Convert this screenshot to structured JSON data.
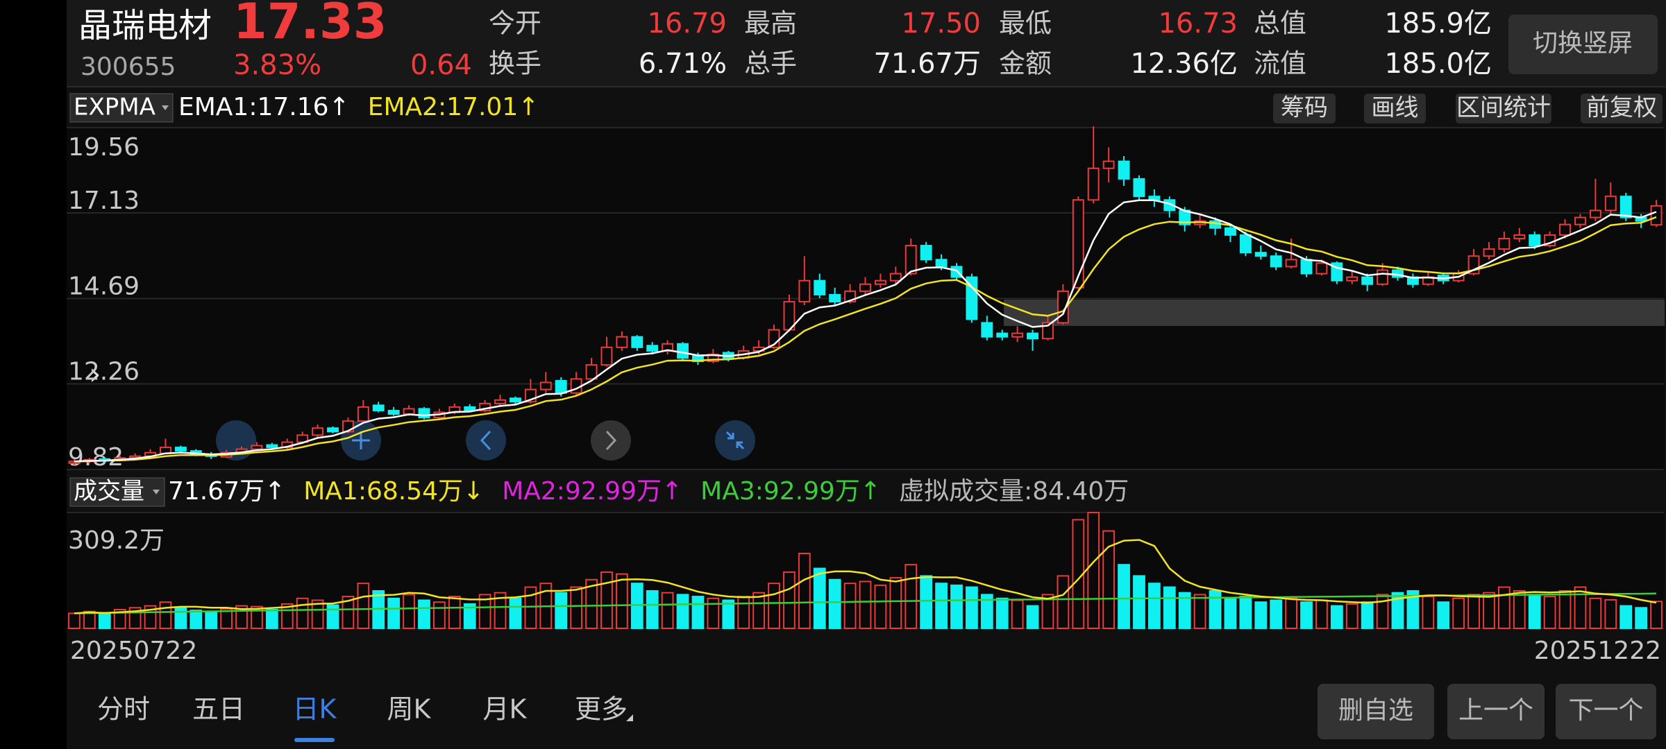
{
  "header": {
    "name": "晶瑞电材",
    "price": "17.33",
    "code": "300655",
    "change_pct": "3.83%",
    "change": "0.64",
    "fields": [
      {
        "label": "今开",
        "value": "16.79"
      },
      {
        "label": "最高",
        "value": "17.50"
      },
      {
        "label": "最低",
        "value": "16.73"
      },
      {
        "label": "总值",
        "value": "185.9亿"
      },
      {
        "label": "换手",
        "value": "6.71%"
      },
      {
        "label": "总手",
        "value": "71.67万"
      },
      {
        "label": "金额",
        "value": "12.36亿"
      },
      {
        "label": "流值",
        "value": "185.0亿"
      }
    ],
    "button": "切换竖屏"
  },
  "toolbar": {
    "indicator": "EXPMA",
    "legend": [
      {
        "text": "EMA1:17.16↑",
        "color": "#ffffff"
      },
      {
        "text": "EMA2:17.01↑",
        "color": "#f2e422"
      }
    ],
    "buttons": [
      "筹码",
      "画线",
      "区间统计",
      "前复权"
    ]
  },
  "volume_bar": {
    "indicator": "成交量",
    "legend": [
      {
        "text": "71.67万↑",
        "color": "#ffffff"
      },
      {
        "text": "MA1:68.54万↓",
        "color": "#f2e422"
      },
      {
        "text": "MA2:92.99万↑",
        "color": "#e024e0"
      },
      {
        "text": "MA3:92.99万↑",
        "color": "#3ccc3c"
      },
      {
        "text": "虚拟成交量:84.40万",
        "color": "#b8b8b8"
      }
    ]
  },
  "chart_data": {
    "type": "candlestick",
    "up_color": "#ec3a3a",
    "down_color": "#10f0f0",
    "ema1_color": "#ffffff",
    "ema2_color": "#f2e422",
    "grid": true,
    "ylim": [
      9.82,
      19.56
    ],
    "yticks": [
      9.82,
      12.26,
      14.69,
      17.13,
      19.56
    ],
    "date_labels": {
      "first": "20250722",
      "last": "20251222"
    },
    "candles": [
      [
        10.0,
        10.12,
        9.95,
        10.05
      ],
      [
        10.05,
        10.15,
        10.0,
        10.1
      ],
      [
        10.12,
        10.18,
        10.02,
        10.08
      ],
      [
        10.08,
        10.22,
        10.05,
        10.15
      ],
      [
        10.15,
        10.28,
        10.1,
        10.2
      ],
      [
        10.2,
        10.4,
        10.15,
        10.3
      ],
      [
        10.28,
        10.7,
        10.25,
        10.45
      ],
      [
        10.45,
        10.5,
        10.3,
        10.35
      ],
      [
        10.35,
        10.4,
        10.2,
        10.25
      ],
      [
        10.25,
        10.32,
        10.12,
        10.2
      ],
      [
        10.18,
        10.38,
        10.15,
        10.3
      ],
      [
        10.3,
        10.48,
        10.25,
        10.4
      ],
      [
        10.4,
        10.6,
        10.35,
        10.5
      ],
      [
        10.52,
        10.58,
        10.38,
        10.45
      ],
      [
        10.45,
        10.7,
        10.4,
        10.6
      ],
      [
        10.6,
        10.9,
        10.55,
        10.8
      ],
      [
        10.8,
        11.1,
        10.75,
        11.0
      ],
      [
        11.0,
        11.05,
        10.85,
        10.9
      ],
      [
        10.9,
        11.3,
        10.85,
        11.2
      ],
      [
        11.2,
        11.8,
        11.15,
        11.6
      ],
      [
        11.65,
        11.75,
        11.45,
        11.5
      ],
      [
        11.5,
        11.6,
        11.35,
        11.4
      ],
      [
        11.4,
        11.65,
        11.35,
        11.55
      ],
      [
        11.55,
        11.6,
        11.25,
        11.3
      ],
      [
        11.3,
        11.55,
        11.25,
        11.45
      ],
      [
        11.45,
        11.7,
        11.4,
        11.6
      ],
      [
        11.6,
        11.68,
        11.45,
        11.5
      ],
      [
        11.5,
        11.8,
        11.45,
        11.7
      ],
      [
        11.7,
        11.95,
        11.65,
        11.8
      ],
      [
        11.85,
        11.9,
        11.65,
        11.75
      ],
      [
        11.75,
        12.4,
        11.7,
        12.1
      ],
      [
        12.1,
        12.6,
        12.0,
        12.3
      ],
      [
        12.35,
        12.45,
        11.9,
        12.0
      ],
      [
        12.0,
        12.6,
        11.95,
        12.4
      ],
      [
        12.4,
        13.0,
        12.35,
        12.8
      ],
      [
        12.8,
        13.6,
        12.75,
        13.3
      ],
      [
        13.3,
        13.75,
        13.2,
        13.6
      ],
      [
        13.6,
        13.65,
        13.2,
        13.3
      ],
      [
        13.35,
        13.45,
        13.1,
        13.2
      ],
      [
        13.2,
        13.5,
        13.1,
        13.4
      ],
      [
        13.4,
        13.45,
        12.95,
        13.0
      ],
      [
        13.05,
        13.15,
        12.8,
        12.9
      ],
      [
        12.9,
        13.25,
        12.85,
        13.1
      ],
      [
        13.15,
        13.2,
        12.9,
        13.0
      ],
      [
        13.0,
        13.35,
        12.95,
        13.2
      ],
      [
        13.2,
        13.5,
        13.1,
        13.3
      ],
      [
        13.3,
        13.95,
        13.25,
        13.8
      ],
      [
        13.8,
        14.8,
        13.75,
        14.6
      ],
      [
        14.6,
        15.9,
        14.5,
        15.2
      ],
      [
        15.2,
        15.4,
        14.7,
        14.8
      ],
      [
        14.8,
        15.0,
        14.5,
        14.6
      ],
      [
        14.6,
        15.1,
        14.55,
        14.9
      ],
      [
        14.9,
        15.3,
        14.8,
        15.1
      ],
      [
        15.1,
        15.4,
        15.0,
        15.2
      ],
      [
        15.2,
        15.6,
        15.1,
        15.4
      ],
      [
        15.4,
        16.4,
        15.35,
        16.2
      ],
      [
        16.2,
        16.3,
        15.7,
        15.8
      ],
      [
        15.8,
        15.95,
        15.5,
        15.6
      ],
      [
        15.6,
        15.7,
        15.2,
        15.3
      ],
      [
        15.3,
        15.4,
        14.0,
        14.1
      ],
      [
        14.0,
        14.2,
        13.5,
        13.6
      ],
      [
        13.7,
        13.8,
        13.5,
        13.6
      ],
      [
        13.6,
        13.9,
        13.45,
        13.7
      ],
      [
        13.7,
        13.8,
        13.2,
        13.55
      ],
      [
        13.55,
        14.2,
        13.5,
        14.0
      ],
      [
        14.0,
        15.1,
        13.95,
        14.9
      ],
      [
        15.0,
        17.6,
        14.95,
        17.5
      ],
      [
        17.5,
        19.6,
        17.4,
        18.4
      ],
      [
        18.4,
        19.0,
        18.0,
        18.6
      ],
      [
        18.6,
        18.75,
        17.9,
        18.1
      ],
      [
        18.1,
        18.2,
        17.5,
        17.6
      ],
      [
        17.6,
        17.8,
        17.3,
        17.5
      ],
      [
        17.5,
        17.6,
        17.0,
        17.2
      ],
      [
        17.2,
        17.3,
        16.6,
        16.8
      ],
      [
        16.8,
        17.1,
        16.7,
        16.9
      ],
      [
        16.9,
        17.0,
        16.5,
        16.7
      ],
      [
        16.7,
        16.8,
        16.3,
        16.5
      ],
      [
        16.5,
        16.6,
        15.9,
        16.0
      ],
      [
        16.0,
        16.2,
        15.8,
        15.9
      ],
      [
        15.9,
        16.0,
        15.5,
        15.6
      ],
      [
        15.6,
        16.4,
        15.55,
        15.8
      ],
      [
        15.8,
        15.9,
        15.3,
        15.4
      ],
      [
        15.4,
        15.8,
        15.35,
        15.7
      ],
      [
        15.7,
        15.75,
        15.1,
        15.2
      ],
      [
        15.2,
        15.5,
        15.1,
        15.3
      ],
      [
        15.3,
        15.4,
        14.9,
        15.1
      ],
      [
        15.1,
        15.7,
        15.05,
        15.5
      ],
      [
        15.5,
        15.6,
        15.2,
        15.3
      ],
      [
        15.3,
        15.4,
        15.0,
        15.1
      ],
      [
        15.1,
        15.45,
        15.05,
        15.3
      ],
      [
        15.35,
        15.4,
        15.1,
        15.2
      ],
      [
        15.2,
        15.5,
        15.15,
        15.4
      ],
      [
        15.4,
        16.1,
        15.35,
        15.9
      ],
      [
        15.9,
        16.3,
        15.8,
        16.1
      ],
      [
        16.1,
        16.6,
        16.0,
        16.4
      ],
      [
        16.4,
        16.7,
        16.3,
        16.5
      ],
      [
        16.5,
        16.6,
        16.1,
        16.2
      ],
      [
        16.2,
        16.6,
        16.15,
        16.5
      ],
      [
        16.5,
        16.95,
        16.4,
        16.8
      ],
      [
        16.8,
        17.1,
        16.7,
        17.0
      ],
      [
        17.0,
        18.1,
        16.9,
        17.2
      ],
      [
        17.2,
        18.0,
        17.1,
        17.6
      ],
      [
        17.6,
        17.7,
        16.9,
        17.0
      ],
      [
        17.0,
        17.1,
        16.7,
        16.9
      ],
      [
        16.79,
        17.5,
        16.73,
        17.33
      ]
    ],
    "ema1": [
      10.05,
      10.07,
      10.07,
      10.1,
      10.13,
      10.19,
      10.28,
      10.3,
      10.28,
      10.25,
      10.27,
      10.31,
      10.37,
      10.4,
      10.47,
      10.58,
      10.72,
      10.78,
      10.92,
      11.15,
      11.27,
      11.31,
      11.39,
      11.36,
      11.39,
      11.46,
      11.47,
      11.55,
      11.63,
      11.67,
      11.81,
      11.97,
      11.98,
      12.12,
      12.35,
      12.67,
      12.98,
      13.09,
      13.13,
      13.22,
      13.15,
      13.07,
      13.08,
      13.05,
      13.1,
      13.17,
      13.38,
      13.79,
      14.26,
      14.44,
      14.49,
      14.63,
      14.79,
      14.93,
      15.09,
      15.46,
      15.57,
      15.58,
      15.49,
      15.02,
      14.55,
      14.23,
      14.05,
      13.88,
      13.92,
      14.25,
      15.33,
      16.35,
      17.1,
      17.43,
      17.49,
      17.49,
      17.39,
      17.19,
      17.09,
      16.96,
      16.81,
      16.54,
      16.33,
      16.09,
      15.99,
      15.79,
      15.76,
      15.57,
      15.48,
      15.35,
      15.4,
      15.37,
      15.28,
      15.29,
      15.26,
      15.31,
      15.51,
      15.71,
      15.94,
      16.13,
      16.15,
      16.27,
      16.45,
      16.63,
      16.82,
      17.08,
      17.05,
      17.0,
      17.16
    ],
    "ema2": [
      10.05,
      10.06,
      10.07,
      10.08,
      10.1,
      10.14,
      10.2,
      10.23,
      10.23,
      10.23,
      10.24,
      10.27,
      10.31,
      10.34,
      10.38,
      10.46,
      10.56,
      10.62,
      10.72,
      10.9,
      11.02,
      11.09,
      11.17,
      11.21,
      11.25,
      11.31,
      11.34,
      11.4,
      11.47,
      11.52,
      11.63,
      11.77,
      11.81,
      11.92,
      12.1,
      12.33,
      12.59,
      12.72,
      12.81,
      12.92,
      12.93,
      12.92,
      12.95,
      12.96,
      13.0,
      13.06,
      13.19,
      13.45,
      13.77,
      13.96,
      14.1,
      14.25,
      14.4,
      14.54,
      14.7,
      14.97,
      15.12,
      15.2,
      15.22,
      15.02,
      14.77,
      14.56,
      14.4,
      14.24,
      14.2,
      14.33,
      14.9,
      15.53,
      16.09,
      16.45,
      16.66,
      16.81,
      16.88,
      16.86,
      16.87,
      16.84,
      16.78,
      16.64,
      16.51,
      16.35,
      16.25,
      16.1,
      16.03,
      15.88,
      15.78,
      15.64,
      15.61,
      15.56,
      15.48,
      15.45,
      15.41,
      15.41,
      15.5,
      15.61,
      15.75,
      15.88,
      15.94,
      16.04,
      16.18,
      16.33,
      16.55,
      16.78,
      16.83,
      16.85,
      17.01
    ],
    "volume": {
      "ylim": [
        0,
        309.2
      ],
      "yticks": [
        {
          "value": 309.2,
          "label": "309.2万"
        }
      ],
      "ma1_color": "#f2e422",
      "ma2_color": "#3ccc3c",
      "values": [
        40,
        45,
        38,
        50,
        55,
        60,
        70,
        55,
        48,
        42,
        52,
        60,
        58,
        50,
        65,
        80,
        75,
        62,
        85,
        120,
        100,
        80,
        90,
        75,
        70,
        85,
        65,
        90,
        95,
        80,
        110,
        120,
        95,
        110,
        130,
        150,
        145,
        120,
        100,
        95,
        90,
        85,
        80,
        75,
        85,
        95,
        120,
        150,
        200,
        160,
        130,
        120,
        125,
        115,
        135,
        170,
        140,
        120,
        115,
        110,
        90,
        80,
        75,
        60,
        90,
        140,
        290,
        309,
        260,
        170,
        140,
        120,
        110,
        95,
        90,
        100,
        80,
        85,
        70,
        75,
        80,
        70,
        75,
        60,
        65,
        70,
        90,
        95,
        100,
        85,
        70,
        80,
        90,
        95,
        110,
        100,
        90,
        85,
        100,
        110,
        80,
        76,
        60,
        55,
        71.67
      ],
      "ma1": [
        40,
        42.5,
        41,
        43,
        45.6,
        49.6,
        54.6,
        57.6,
        57.6,
        55,
        55,
        51.4,
        52,
        54.4,
        57,
        62.6,
        65.6,
        66.4,
        73.4,
        84.4,
        88.4,
        89.4,
        95,
        93,
        83,
        80,
        77,
        77,
        81,
        83,
        88,
        100,
        100,
        103,
        113,
        121,
        130,
        131,
        129,
        122,
        110,
        98,
        90,
        85,
        83,
        84,
        91,
        105,
        130,
        146,
        152,
        152,
        147,
        130,
        125,
        133,
        137,
        136,
        136,
        127,
        115,
        103,
        94,
        83,
        79,
        89,
        131,
        177,
        218,
        234,
        236,
        220,
        160,
        127,
        111,
        103,
        95,
        90,
        85,
        82,
        78,
        76,
        75,
        72,
        70,
        68,
        72,
        79,
        84,
        88,
        88,
        86,
        85,
        84,
        89,
        95,
        97,
        96,
        97,
        99,
        93,
        90,
        85,
        76,
        68.54
      ],
      "ma2": [
        40,
        40.6,
        41.2,
        41.8,
        42.4,
        43,
        43.6,
        44.2,
        44.8,
        45.4,
        46,
        46.6,
        47.2,
        47.8,
        48.4,
        49,
        49.6,
        50.2,
        50.8,
        51.4,
        52,
        52.6,
        53.2,
        53.8,
        54.4,
        55,
        55.6,
        56.2,
        56.8,
        57.4,
        58,
        58.6,
        59.2,
        59.8,
        60.4,
        61,
        61.6,
        62.2,
        62.8,
        63.4,
        64,
        64.6,
        65.2,
        65.8,
        66.4,
        67,
        67.6,
        68.2,
        68.8,
        69.4,
        70,
        70.6,
        71.2,
        71.8,
        72.4,
        73,
        73.6,
        74.2,
        74.8,
        75.4,
        76,
        76.4,
        76.8,
        77.1,
        77.5,
        77.9,
        78.3,
        78.7,
        79,
        79.4,
        79.8,
        80.2,
        80.6,
        80.9,
        81.3,
        81.7,
        82.1,
        82.5,
        82.8,
        83.2,
        83.6,
        84,
        84.4,
        84.7,
        85.1,
        85.5,
        85.9,
        86.3,
        86.6,
        87,
        87.4,
        87.8,
        88.2,
        88.5,
        88.9,
        89.3,
        89.7,
        90.1,
        90.4,
        90.8,
        91.2,
        91.6,
        92,
        92.4,
        92.99
      ]
    }
  },
  "tabs": {
    "items": [
      "分时",
      "五日",
      "日K",
      "周K",
      "月K",
      "更多"
    ],
    "active": "日K"
  },
  "footer_buttons": [
    "删自选",
    "上一个",
    "下一个"
  ]
}
